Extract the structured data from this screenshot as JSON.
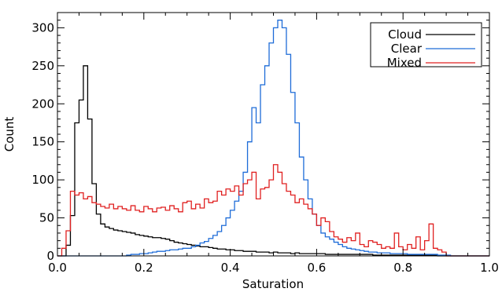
{
  "chart_data": {
    "type": "line",
    "title": "",
    "xlabel": "Saturation",
    "ylabel": "Count",
    "xlim": [
      0.0,
      1.0
    ],
    "ylim": [
      0,
      320
    ],
    "x_ticks": [
      0.0,
      0.2,
      0.4,
      0.6,
      0.8,
      1.0
    ],
    "x_tick_labels": [
      "0.0",
      "0.2",
      "0.4",
      "0.6",
      "0.8",
      "1.0"
    ],
    "y_ticks": [
      0,
      50,
      100,
      150,
      200,
      250,
      300
    ],
    "y_tick_labels": [
      "0",
      "50",
      "100",
      "150",
      "200",
      "250",
      "300"
    ],
    "grid": false,
    "legend_position": "top-right",
    "step": true,
    "bin_start": 0.0,
    "bin_width": 0.01,
    "series": [
      {
        "name": "Cloud",
        "color": "#000000",
        "values": [
          0,
          0,
          14,
          53,
          175,
          205,
          250,
          180,
          95,
          55,
          42,
          38,
          36,
          34,
          33,
          32,
          31,
          30,
          28,
          27,
          26,
          25,
          24,
          24,
          23,
          22,
          20,
          18,
          17,
          16,
          15,
          14,
          13,
          12,
          12,
          11,
          10,
          9,
          9,
          8,
          8,
          7,
          7,
          6,
          6,
          6,
          5,
          5,
          5,
          4,
          5,
          4,
          4,
          4,
          3,
          4,
          3,
          3,
          3,
          3,
          3,
          3,
          2,
          2,
          2,
          2,
          2,
          2,
          2,
          2,
          2,
          2,
          2,
          1,
          1,
          1,
          1,
          1,
          1,
          1,
          1,
          1,
          1,
          1,
          1,
          1,
          1,
          1,
          0,
          0,
          0,
          0,
          0,
          0,
          0,
          0,
          0,
          0,
          0,
          0
        ]
      },
      {
        "name": "Clear",
        "color": "#1e6cd8",
        "values": [
          0,
          0,
          0,
          0,
          0,
          0,
          0,
          0,
          0,
          0,
          0,
          0,
          0,
          0,
          0,
          0,
          1,
          2,
          2,
          3,
          3,
          4,
          5,
          6,
          6,
          7,
          8,
          8,
          9,
          10,
          10,
          12,
          14,
          17,
          19,
          23,
          27,
          32,
          40,
          50,
          60,
          72,
          85,
          110,
          150,
          195,
          175,
          225,
          250,
          280,
          300,
          310,
          300,
          265,
          215,
          175,
          130,
          100,
          75,
          55,
          40,
          30,
          25,
          22,
          18,
          15,
          12,
          10,
          9,
          8,
          7,
          6,
          5,
          5,
          4,
          4,
          4,
          3,
          3,
          3,
          3,
          2,
          2,
          2,
          2,
          2,
          2,
          2,
          1,
          1,
          1,
          0,
          0,
          0,
          0,
          0,
          0,
          0,
          0,
          0
        ]
      },
      {
        "name": "Mixed",
        "color": "#e02020",
        "values": [
          0,
          10,
          33,
          85,
          80,
          83,
          75,
          78,
          70,
          68,
          65,
          63,
          68,
          62,
          65,
          62,
          60,
          66,
          60,
          58,
          65,
          62,
          58,
          63,
          64,
          60,
          66,
          62,
          58,
          70,
          72,
          62,
          68,
          63,
          75,
          70,
          72,
          85,
          80,
          88,
          85,
          92,
          80,
          95,
          100,
          110,
          75,
          88,
          90,
          100,
          120,
          110,
          95,
          85,
          80,
          70,
          75,
          68,
          62,
          55,
          40,
          50,
          45,
          32,
          25,
          22,
          18,
          24,
          20,
          30,
          15,
          12,
          20,
          18,
          15,
          10,
          12,
          10,
          30,
          12,
          8,
          15,
          10,
          25,
          8,
          20,
          42,
          10,
          8,
          5,
          0,
          0,
          0,
          0,
          0,
          0,
          0,
          0,
          0,
          0
        ]
      }
    ]
  }
}
